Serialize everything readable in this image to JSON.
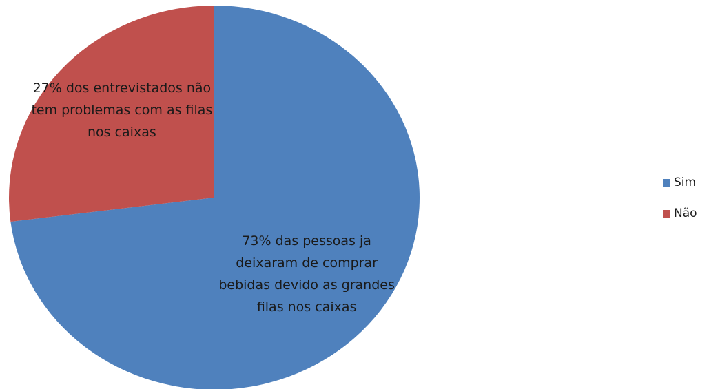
{
  "chart_data": {
    "type": "pie",
    "categories": [
      "Sim",
      "Não"
    ],
    "values": [
      73,
      27
    ],
    "value_labels": [
      "73% das pessoas ja deixaram de comprar bebidas devido as grandes filas nos caixas",
      "27% dos entrevistados não tem problemas com as filas nos caixas"
    ],
    "colors": [
      "#4f81bd",
      "#c0504d"
    ],
    "legend": "right"
  }
}
